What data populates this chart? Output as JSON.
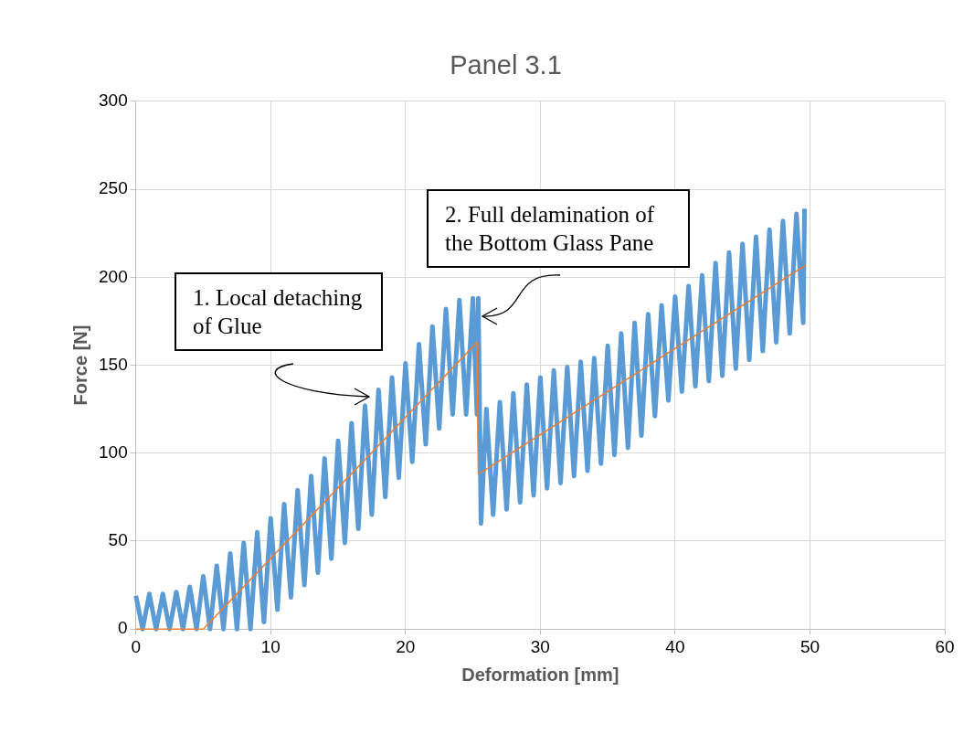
{
  "chart_data": {
    "type": "line",
    "title": "Panel 3.1",
    "xlabel": "Deformation [mm]",
    "ylabel": "Force [N]",
    "xlim": [
      0,
      60
    ],
    "xticks": [
      0,
      10,
      20,
      30,
      40,
      50,
      60
    ],
    "ylim": [
      0,
      300
    ],
    "yticks": [
      0,
      50,
      100,
      150,
      200,
      250,
      300
    ],
    "grid": true,
    "marker": "none",
    "series": [
      {
        "color": "#5b9bd5",
        "x": [
          0,
          0.5,
          1,
          1.5,
          2,
          2.5,
          3,
          3.5,
          4,
          4.5,
          5,
          5.5,
          6,
          6.5,
          7,
          7.5,
          8,
          8.5,
          9,
          9.5,
          10,
          10.5,
          11,
          11.5,
          12,
          12.5,
          13,
          13.5,
          14,
          14.5,
          15,
          15.5,
          16,
          16.5,
          17,
          17.5,
          18,
          18.5,
          19,
          19.5,
          20,
          20.5,
          21,
          21.5,
          22,
          22.5,
          23,
          23.5,
          24,
          24.5,
          25,
          25.3,
          25.4,
          25.6,
          26,
          26.5,
          27,
          27.5,
          28,
          28.5,
          29,
          29.5,
          30,
          30.5,
          31,
          31.5,
          32,
          32.5,
          33,
          33.5,
          34,
          34.5,
          35,
          35.5,
          36,
          36.5,
          37,
          37.5,
          38,
          38.5,
          39,
          39.5,
          40,
          40.5,
          41,
          41.5,
          42,
          42.5,
          43,
          43.5,
          44,
          44.5,
          45,
          45.5,
          46,
          46.5,
          47,
          47.5,
          48,
          48.5,
          49,
          49.5,
          49.6
        ],
        "values": [
          19,
          0,
          20,
          0,
          20,
          0,
          21,
          0,
          24,
          0,
          30,
          0,
          36,
          0,
          43,
          0,
          49,
          0,
          55,
          4,
          63,
          11,
          71,
          18,
          79,
          25,
          87,
          32,
          97,
          40,
          107,
          49,
          117,
          57,
          127,
          65,
          136,
          75,
          143,
          86,
          151,
          95,
          162,
          105,
          172,
          114,
          182,
          122,
          187,
          122,
          188,
          122,
          188,
          60,
          125,
          65,
          129,
          68,
          134,
          72,
          139,
          76,
          143,
          80,
          147,
          83,
          149,
          87,
          152,
          90,
          154,
          94,
          161,
          99,
          168,
          103,
          174,
          110,
          179,
          121,
          184,
          130,
          189,
          135,
          195,
          138,
          201,
          141,
          208,
          144,
          214,
          148,
          219,
          153,
          223,
          158,
          227,
          163,
          232,
          168,
          236,
          174,
          239
        ]
      },
      {
        "color": "#ed7d31",
        "x": [
          0,
          5,
          25.3,
          25.4,
          49.7
        ],
        "values": [
          0,
          0,
          163,
          88,
          207
        ]
      }
    ],
    "annotations": [
      {
        "text": "1. Local detaching of Glue",
        "x": 17.5,
        "y": 132
      },
      {
        "text": "2. Full delamination of the Bottom Glass Pane",
        "x": 25.5,
        "y": 178
      }
    ]
  }
}
